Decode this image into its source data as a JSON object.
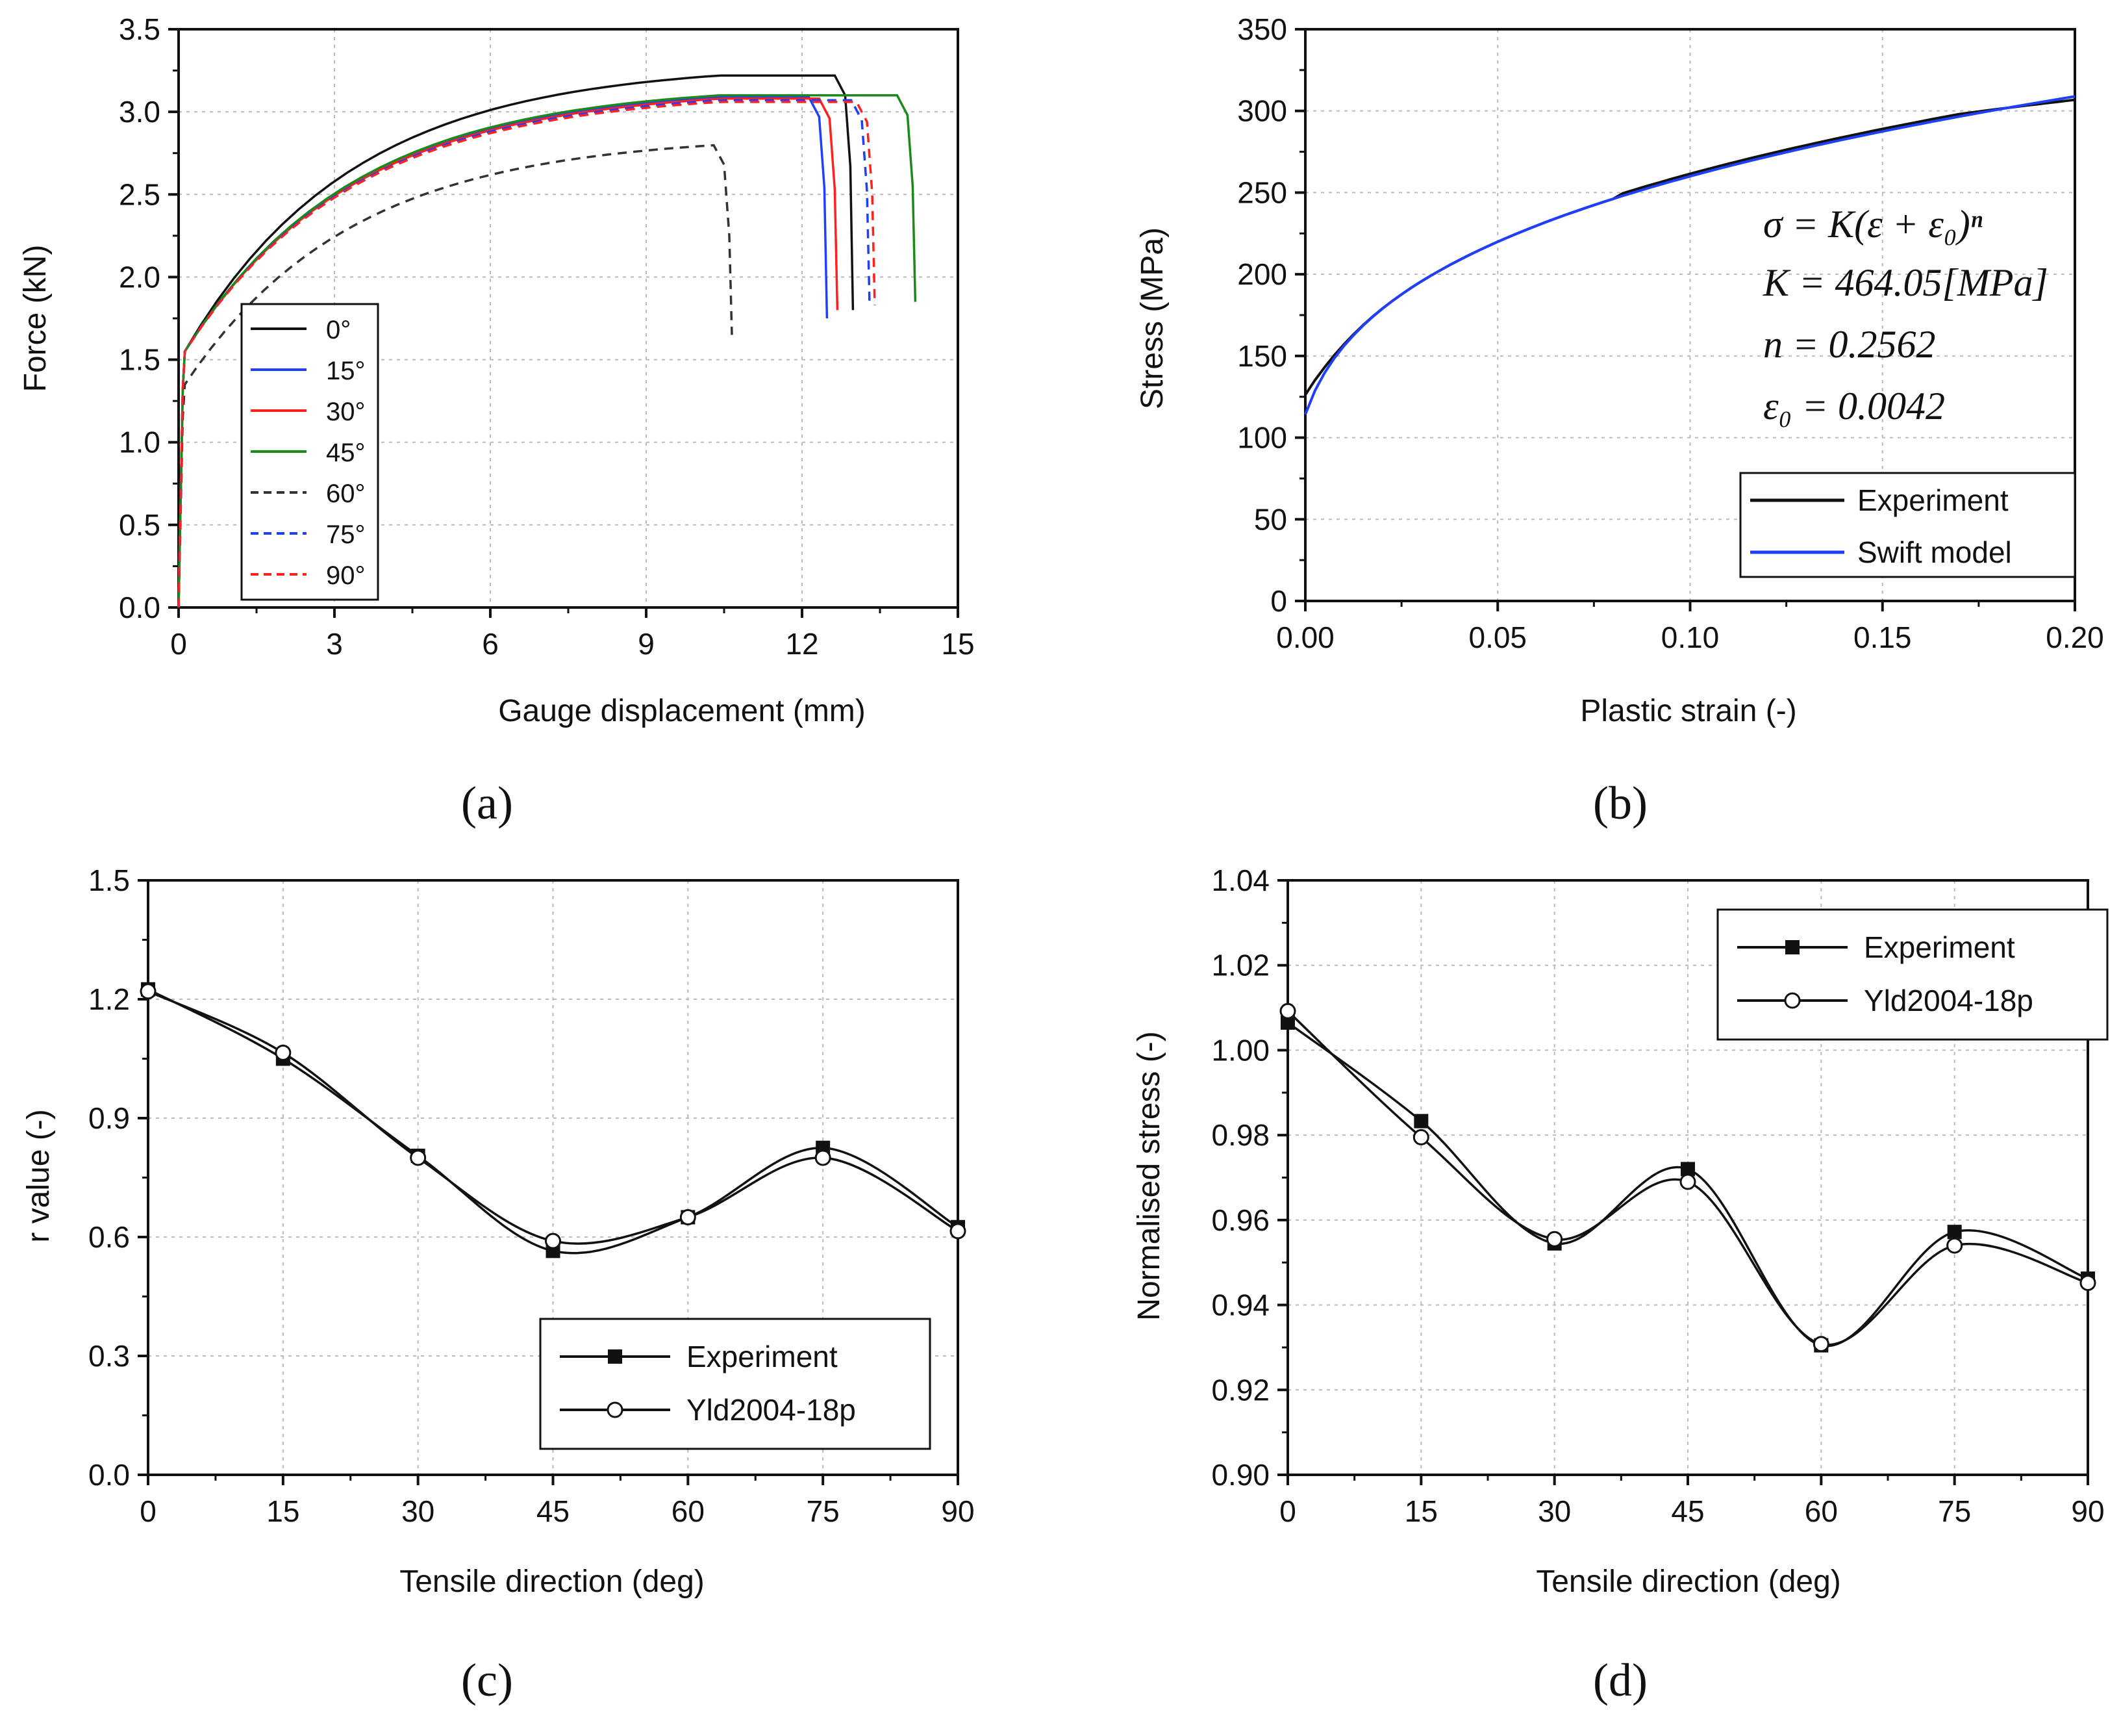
{
  "chart_data": [
    {
      "id": "a",
      "caption": "(a)",
      "type": "line",
      "title": "",
      "xlabel": "Gauge displacement (mm)",
      "ylabel": "Force (kN)",
      "xlim": [
        0,
        15
      ],
      "ylim": [
        0,
        3.5
      ],
      "xticks": [
        0,
        3,
        6,
        9,
        12,
        15
      ],
      "xtick_labels": [
        "0",
        "3",
        "6",
        "9",
        "12",
        "15"
      ],
      "yticks": [
        0,
        0.5,
        1.0,
        1.5,
        2.0,
        2.5,
        3.0,
        3.5
      ],
      "ytick_labels": [
        "0.0",
        "0.5",
        "1.0",
        "1.5",
        "2.0",
        "2.5",
        "3.0",
        "3.5"
      ],
      "grid": true,
      "legend_position": "bottom-left",
      "series": [
        {
          "name": "0°",
          "color": "#111111",
          "dash": "solid",
          "peak": 3.22,
          "end": 12.98,
          "end_force": 1.8
        },
        {
          "name": "15°",
          "color": "#1f3fff",
          "dash": "solid",
          "peak": 3.09,
          "end": 12.48,
          "end_force": 1.75
        },
        {
          "name": "30°",
          "color": "#ff2020",
          "dash": "solid",
          "peak": 3.08,
          "end": 12.68,
          "end_force": 1.8
        },
        {
          "name": "45°",
          "color": "#1a8a1a",
          "dash": "solid",
          "peak": 3.1,
          "end": 14.18,
          "end_force": 1.85
        },
        {
          "name": "60°",
          "color": "#333333",
          "dash": "dashed",
          "peak": 2.8,
          "end": 10.65,
          "end_force": 1.65
        },
        {
          "name": "75°",
          "color": "#1f3fff",
          "dash": "dashed",
          "peak": 3.07,
          "end": 13.3,
          "end_force": 1.83
        },
        {
          "name": "90°",
          "color": "#ff2020",
          "dash": "dashed",
          "peak": 3.06,
          "end": 13.4,
          "end_force": 1.83
        }
      ]
    },
    {
      "id": "b",
      "caption": "(b)",
      "type": "line",
      "title": "",
      "xlabel": "Plastic strain (-)",
      "ylabel": "Stress (MPa)",
      "xlim": [
        0,
        0.2
      ],
      "ylim": [
        0,
        350
      ],
      "xticks": [
        0,
        0.05,
        0.1,
        0.15,
        0.2
      ],
      "xtick_labels": [
        "0.00",
        "0.05",
        "0.10",
        "0.15",
        "0.20"
      ],
      "yticks": [
        0,
        50,
        100,
        150,
        200,
        250,
        300,
        350
      ],
      "ytick_labels": [
        "0",
        "50",
        "100",
        "150",
        "200",
        "250",
        "300",
        "350"
      ],
      "grid": true,
      "legend_position": "bottom-right",
      "swift_params": {
        "K": 464.05,
        "n": 0.2562,
        "e0": 0.0042
      },
      "equations": [
        "σ = K(ε + ε₀)ⁿ",
        "K = 464.05[MPa]",
        "n = 0.2562",
        "ε₀ = 0.0042"
      ],
      "series": [
        {
          "name": "Experiment",
          "color": "#111111"
        },
        {
          "name": "Swift model",
          "color": "#1f3fff"
        }
      ]
    },
    {
      "id": "c",
      "caption": "(c)",
      "type": "line",
      "title": "",
      "xlabel": "Tensile direction (deg)",
      "ylabel": "r value (-)",
      "xlim": [
        0,
        90
      ],
      "ylim": [
        0,
        1.5
      ],
      "xticks": [
        0,
        15,
        30,
        45,
        60,
        75,
        90
      ],
      "xtick_labels": [
        "0",
        "15",
        "30",
        "45",
        "60",
        "75",
        "90"
      ],
      "yticks": [
        0,
        0.3,
        0.6,
        0.9,
        1.2,
        1.5
      ],
      "ytick_labels": [
        "0.0",
        "0.3",
        "0.6",
        "0.9",
        "1.2",
        "1.5"
      ],
      "grid": true,
      "legend_position": "bottom-right",
      "x": [
        0,
        15,
        30,
        45,
        60,
        75,
        90
      ],
      "series": [
        {
          "name": "Experiment",
          "marker": "filled-square",
          "values": [
            1.225,
            1.05,
            0.805,
            0.565,
            0.65,
            0.825,
            0.625
          ]
        },
        {
          "name": "Yld2004-18p",
          "marker": "open-circle",
          "values": [
            1.22,
            1.065,
            0.8,
            0.59,
            0.65,
            0.8,
            0.615
          ]
        }
      ]
    },
    {
      "id": "d",
      "caption": "(d)",
      "type": "line",
      "title": "",
      "xlabel": "Tensile direction (deg)",
      "ylabel": "Normalised stress (-)",
      "xlim": [
        0,
        90
      ],
      "ylim": [
        0.9,
        1.04
      ],
      "xticks": [
        0,
        15,
        30,
        45,
        60,
        75,
        90
      ],
      "xtick_labels": [
        "0",
        "15",
        "30",
        "45",
        "60",
        "75",
        "90"
      ],
      "yticks": [
        0.9,
        0.92,
        0.94,
        0.96,
        0.98,
        1.0,
        1.02,
        1.04
      ],
      "ytick_labels": [
        "0.90",
        "0.92",
        "0.94",
        "0.96",
        "0.98",
        "1.00",
        "1.02",
        "1.04"
      ],
      "grid": true,
      "legend_position": "top-right",
      "x": [
        0,
        15,
        30,
        45,
        60,
        75,
        90
      ],
      "series": [
        {
          "name": "Experiment",
          "marker": "filled-square",
          "values": [
            1.0065,
            0.9833,
            0.9545,
            0.972,
            0.9305,
            0.9572,
            0.9462
          ]
        },
        {
          "name": "Yld2004-18p",
          "marker": "open-circle",
          "values": [
            1.0092,
            0.9795,
            0.9555,
            0.969,
            0.9308,
            0.954,
            0.9452
          ]
        }
      ]
    }
  ]
}
